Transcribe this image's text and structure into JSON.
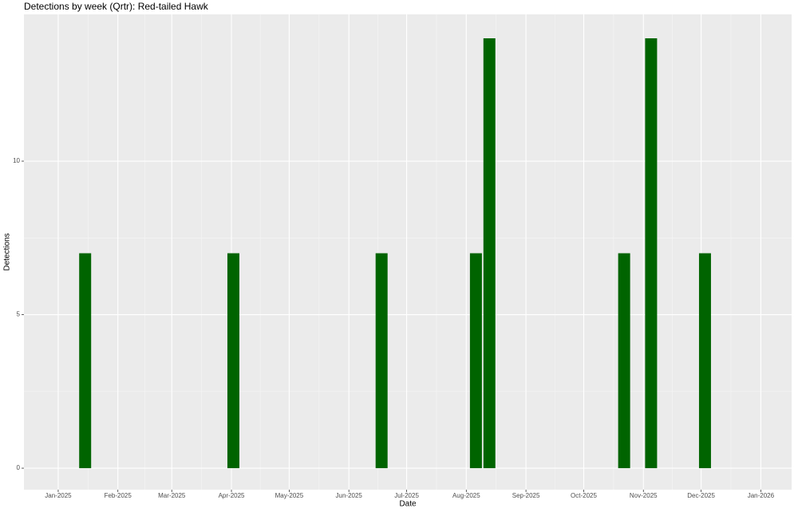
{
  "chart_data": {
    "type": "bar",
    "title": "Detections by week (Qrtr): Red-tailed Hawk",
    "x_label": "Date",
    "y_label": "Detections",
    "x": [
      14,
      91,
      168,
      217,
      224,
      294,
      308,
      336
    ],
    "values": [
      7,
      7,
      7,
      7,
      14,
      7,
      14,
      7
    ],
    "color": "#006400",
    "xlim": [
      -17.8,
      381
    ],
    "xticks": [
      {
        "value": 0,
        "label": "Jan-2025"
      },
      {
        "value": 31,
        "label": "Feb-2025"
      },
      {
        "value": 59,
        "label": "Mar-2025"
      },
      {
        "value": 90,
        "label": "Apr-2025"
      },
      {
        "value": 120,
        "label": "May-2025"
      },
      {
        "value": 151,
        "label": "Jun-2025"
      },
      {
        "value": 181,
        "label": "Jul-2025"
      },
      {
        "value": 212,
        "label": "Aug-2025"
      },
      {
        "value": 243,
        "label": "Sep-2025"
      },
      {
        "value": 273,
        "label": "Oct-2025"
      },
      {
        "value": 304,
        "label": "Nov-2025"
      },
      {
        "value": 334,
        "label": "Dec-2025"
      },
      {
        "value": 365,
        "label": "Jan-2026"
      }
    ],
    "ylim": [
      -0.7,
      14.78
    ],
    "yticks": [
      0,
      5,
      10
    ],
    "grid": true
  }
}
